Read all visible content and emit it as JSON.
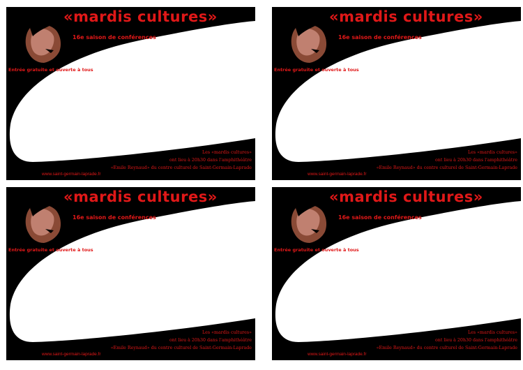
{
  "colors": {
    "background": "#000000",
    "text_accent": "#e01818",
    "panel": "#ffffff",
    "face_shadow": "#8a4a36",
    "face_highlight": "#c08070"
  },
  "cards": [
    {
      "title": "«mardis cultures»",
      "subtitle": "16e saison de conférences",
      "entry": "Entrée gratuite et ouverte à tous",
      "info_lines": [
        "Les «mardis cultures»",
        "ont lieu à 20h30 dans l'amphithéâtre",
        "«Emile Reynaud» du centre culturel de Saint-Germain-Laprade"
      ],
      "website": "www.saint-germain-laprade.fr"
    },
    {
      "title": "«mardis cultures»",
      "subtitle": "16e saison de conférences",
      "entry": "Entrée gratuite et ouverte à tous",
      "info_lines": [
        "Les «mardis cultures»",
        "ont lieu à 20h30 dans l'amphithéâtre",
        "«Emile Reynaud» du centre culturel de Saint-Germain-Laprade"
      ],
      "website": "www.saint-germain-laprade.fr"
    },
    {
      "title": "«mardis cultures»",
      "subtitle": "16e saison de conférences",
      "entry": "Entrée gratuite et ouverte à tous",
      "info_lines": [
        "Les «mardis cultures»",
        "ont lieu à 20h30 dans l'amphithéâtre",
        "«Emile Reynaud» du centre culturel de Saint-Germain-Laprade"
      ],
      "website": "www.saint-germain-laprade.fr"
    },
    {
      "title": "«mardis cultures»",
      "subtitle": "16e saison de conférences",
      "entry": "Entrée gratuite et ouverte à tous",
      "info_lines": [
        "Les «mardis cultures»",
        "ont lieu à 20h30 dans l'amphithéâtre",
        "«Emile Reynaud» du centre culturel de Saint-Germain-Laprade"
      ],
      "website": "www.saint-germain-laprade.fr"
    }
  ]
}
